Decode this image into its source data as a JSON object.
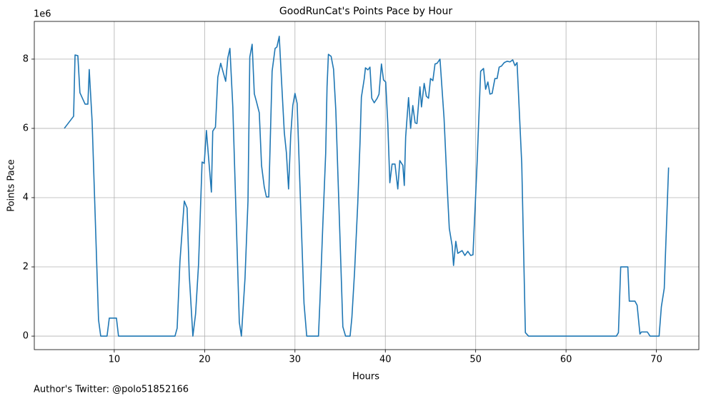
{
  "chart_data": {
    "type": "line",
    "title": "GoodRunCat's Points Pace by Hour",
    "x_label": "Hours",
    "y_label": "Points Pace",
    "y_offset_label": "1e6",
    "footer": "Author's Twitter: @polo51852166",
    "xlim": [
      1.15,
      74.7
    ],
    "ylim": [
      -0.39,
      9.09
    ],
    "xticks": [
      10,
      20,
      30,
      40,
      50,
      60,
      70
    ],
    "yticks": [
      0,
      2,
      4,
      6,
      8
    ],
    "grid": true,
    "series": [
      {
        "color": "#1f77b4",
        "x": [
          4.47,
          5.5,
          5.66,
          5.97,
          6.2,
          6.77,
          7.08,
          7.23,
          7.55,
          8.26,
          8.5,
          9.2,
          9.45,
          10.24,
          10.47,
          16.72,
          16.96,
          17.27,
          17.75,
          18.06,
          18.3,
          18.7,
          19.0,
          19.33,
          19.72,
          19.96,
          20.2,
          20.43,
          20.75,
          20.9,
          21.2,
          21.46,
          21.78,
          22.33,
          22.57,
          22.8,
          23.12,
          23.84,
          24.07,
          24.47,
          24.8,
          25.0,
          25.26,
          25.5,
          25.73,
          26.05,
          26.3,
          26.6,
          26.84,
          27.1,
          27.47,
          27.8,
          28.0,
          28.26,
          28.5,
          28.82,
          29.05,
          29.29,
          29.53,
          29.76,
          30.0,
          30.24,
          30.55,
          31.0,
          31.3,
          32.6,
          32.77,
          33.08,
          33.4,
          33.55,
          33.7,
          34.0,
          34.27,
          34.52,
          35.0,
          35.3,
          35.6,
          36.1,
          36.3,
          36.6,
          36.95,
          37.2,
          37.35,
          37.67,
          37.8,
          38.07,
          38.3,
          38.5,
          38.77,
          39.1,
          39.3,
          39.57,
          39.8,
          40.04,
          40.27,
          40.5,
          40.75,
          41.07,
          41.38,
          41.6,
          41.94,
          42.1,
          42.25,
          42.57,
          42.8,
          43.04,
          43.3,
          43.5,
          43.83,
          44.0,
          44.3,
          44.54,
          44.78,
          45.0,
          45.26,
          45.5,
          45.73,
          46.05,
          46.5,
          46.84,
          47.08,
          47.4,
          47.55,
          47.8,
          48.02,
          48.5,
          48.8,
          49.13,
          49.45,
          49.7,
          50.16,
          50.55,
          50.87,
          51.1,
          51.35,
          51.58,
          51.82,
          52.13,
          52.37,
          52.6,
          52.85,
          53.16,
          53.48,
          53.8,
          54.1,
          54.35,
          54.58,
          55.1,
          55.5,
          55.85,
          65.57,
          65.8,
          66.05,
          66.84,
          67.0,
          67.63,
          67.87,
          68.18,
          68.34,
          69.0,
          69.3,
          70.3,
          70.55,
          70.87,
          71.35
        ],
        "values": [
          6.0,
          6.35,
          8.12,
          8.1,
          7.03,
          6.7,
          6.7,
          7.7,
          6.2,
          0.47,
          0,
          0,
          0.52,
          0.52,
          0,
          0,
          0.23,
          2.16,
          3.9,
          3.7,
          1.77,
          0,
          0.64,
          2.08,
          5.03,
          4.99,
          5.94,
          5.18,
          4.16,
          5.92,
          6.04,
          7.48,
          7.88,
          7.36,
          8.04,
          8.31,
          6.62,
          0.4,
          0,
          1.67,
          3.9,
          8.06,
          8.43,
          7.0,
          6.78,
          6.45,
          4.93,
          4.31,
          4.02,
          4.02,
          7.65,
          8.31,
          8.35,
          8.66,
          7.44,
          5.88,
          5.3,
          4.25,
          5.8,
          6.66,
          7.01,
          6.72,
          4.35,
          0.95,
          0,
          0,
          1.05,
          3.2,
          5.28,
          7.2,
          8.14,
          8.08,
          7.71,
          6.52,
          2.7,
          0.27,
          0,
          0,
          0.54,
          1.88,
          3.84,
          5.59,
          6.9,
          7.44,
          7.75,
          7.69,
          7.77,
          6.87,
          6.74,
          6.87,
          6.99,
          7.86,
          7.4,
          7.34,
          6.16,
          4.43,
          4.97,
          4.97,
          4.25,
          5.07,
          4.93,
          4.35,
          5.75,
          6.89,
          6.0,
          6.66,
          6.16,
          6.14,
          7.2,
          6.62,
          7.3,
          6.93,
          6.87,
          7.44,
          7.38,
          7.86,
          7.88,
          8.0,
          6.29,
          4.35,
          3.11,
          2.6,
          2.04,
          2.74,
          2.39,
          2.47,
          2.33,
          2.45,
          2.33,
          2.35,
          5.01,
          7.65,
          7.73,
          7.13,
          7.34,
          6.99,
          7.01,
          7.44,
          7.44,
          7.77,
          7.8,
          7.9,
          7.94,
          7.92,
          7.98,
          7.81,
          7.9,
          4.97,
          0.1,
          0,
          0,
          0.1,
          2.0,
          2.0,
          1.01,
          1.01,
          0.89,
          0.06,
          0.12,
          0.12,
          0,
          0,
          0.85,
          1.38,
          4.87
        ]
      }
    ]
  }
}
